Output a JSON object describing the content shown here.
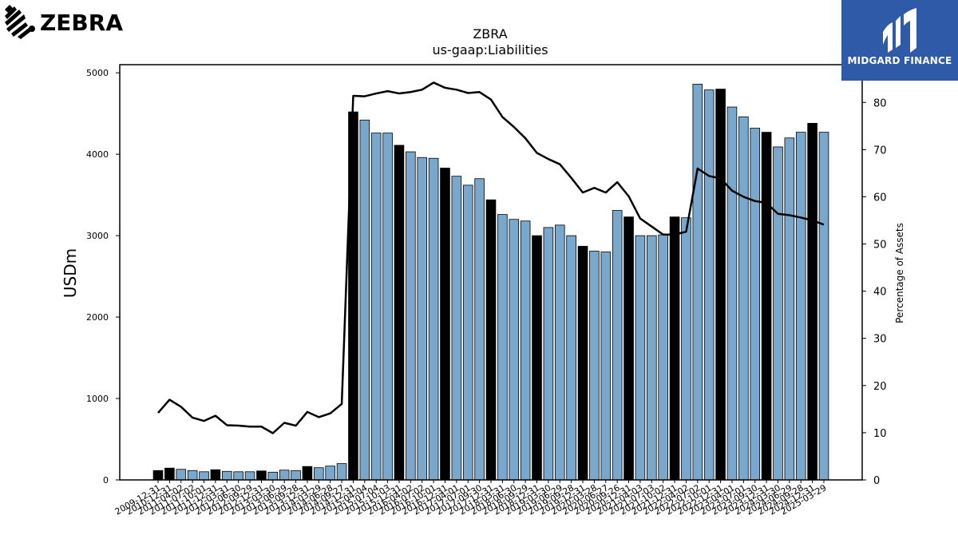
{
  "brand": {
    "left_logo_text": "ZEBRA",
    "right_logo_text": "MIDGARD FINANCE",
    "accent": "#2f5aa8"
  },
  "chart_data": {
    "type": "bar",
    "title": "ZBRA",
    "subtitle": "us-gaap:Liabilities",
    "ylabel": "USDm",
    "y2label": "Percentage of Assets",
    "ylim": [
      0,
      5100
    ],
    "y2lim": [
      0,
      88
    ],
    "yticks": [
      0,
      1000,
      2000,
      3000,
      4000,
      5000
    ],
    "y2ticks": [
      0,
      10,
      20,
      30,
      40,
      50,
      60,
      70,
      80
    ],
    "colors": {
      "annual": "#000000",
      "quarterly": "#7aa8cd",
      "line": "#000000"
    },
    "categories": [
      "2009-12-31",
      "2010-12-31",
      "2011-04-02",
      "2011-07-02",
      "2011-10-01",
      "2011-12-31",
      "2012-03-31",
      "2012-06-30",
      "2012-09-29",
      "2012-12-31",
      "2013-03-30",
      "2013-06-29",
      "2013-09-28",
      "2013-12-31",
      "2014-03-29",
      "2014-06-28",
      "2014-09-27",
      "2014-12-31",
      "2015-04-04",
      "2015-07-04",
      "2015-10-03",
      "2015-12-31",
      "2016-04-02",
      "2016-07-02",
      "2016-10-01",
      "2016-12-31",
      "2017-04-01",
      "2017-07-01",
      "2017-09-30",
      "2017-12-31",
      "2018-03-31",
      "2018-06-30",
      "2018-09-29",
      "2018-12-31",
      "2019-03-30",
      "2019-06-29",
      "2019-09-28",
      "2019-12-31",
      "2020-03-28",
      "2020-06-27",
      "2020-09-26",
      "2020-12-31",
      "2021-04-03",
      "2021-07-03",
      "2021-10-02",
      "2021-12-31",
      "2022-04-02",
      "2022-07-02",
      "2022-10-01",
      "2022-12-31",
      "2023-04-01",
      "2023-07-01",
      "2023-09-30",
      "2023-12-31",
      "2024-03-30",
      "2024-06-29",
      "2024-09-28",
      "2024-12-31",
      "2025-03-29"
    ],
    "values": [
      115,
      145,
      130,
      115,
      100,
      125,
      105,
      100,
      100,
      110,
      95,
      120,
      115,
      165,
      150,
      170,
      200,
      4520,
      4420,
      4260,
      4260,
      4110,
      4030,
      3960,
      3950,
      3830,
      3730,
      3620,
      3700,
      3440,
      3260,
      3200,
      3180,
      3000,
      3100,
      3130,
      3000,
      2870,
      2810,
      2800,
      3310,
      3230,
      3000,
      3000,
      3010,
      3230,
      3220,
      4860,
      4790,
      4800,
      4580,
      4460,
      4320,
      4270,
      4090,
      4200,
      4270,
      4380,
      4270
    ],
    "bar_kind": [
      "A",
      "A",
      "Q",
      "Q",
      "Q",
      "A",
      "Q",
      "Q",
      "Q",
      "A",
      "Q",
      "Q",
      "Q",
      "A",
      "Q",
      "Q",
      "Q",
      "A",
      "Q",
      "Q",
      "Q",
      "A",
      "Q",
      "Q",
      "Q",
      "A",
      "Q",
      "Q",
      "Q",
      "A",
      "Q",
      "Q",
      "Q",
      "A",
      "Q",
      "Q",
      "Q",
      "A",
      "Q",
      "Q",
      "Q",
      "A",
      "Q",
      "Q",
      "Q",
      "A",
      "Q",
      "Q",
      "Q",
      "A",
      "Q",
      "Q",
      "Q",
      "A",
      "Q",
      "Q",
      "Q",
      "A",
      "Q"
    ],
    "pct_of_assets": [
      14.2,
      17.0,
      15.5,
      13.2,
      12.5,
      13.6,
      11.6,
      11.5,
      11.3,
      11.3,
      9.9,
      12.1,
      11.5,
      14.4,
      13.3,
      14.1,
      16.1,
      81.4,
      81.3,
      81.9,
      82.4,
      81.9,
      82.2,
      82.7,
      84.2,
      83.1,
      82.7,
      82.0,
      82.2,
      80.6,
      76.9,
      74.8,
      72.4,
      69.3,
      68.0,
      66.9,
      64.0,
      60.9,
      61.9,
      60.9,
      63.1,
      60.1,
      55.4,
      53.7,
      52.0,
      52.0,
      52.6,
      66.0,
      64.4,
      63.9,
      61.3,
      60.0,
      59.1,
      58.7,
      56.4,
      56.1,
      55.6,
      55.0,
      54.1
    ],
    "grid": false,
    "legend": "none"
  }
}
